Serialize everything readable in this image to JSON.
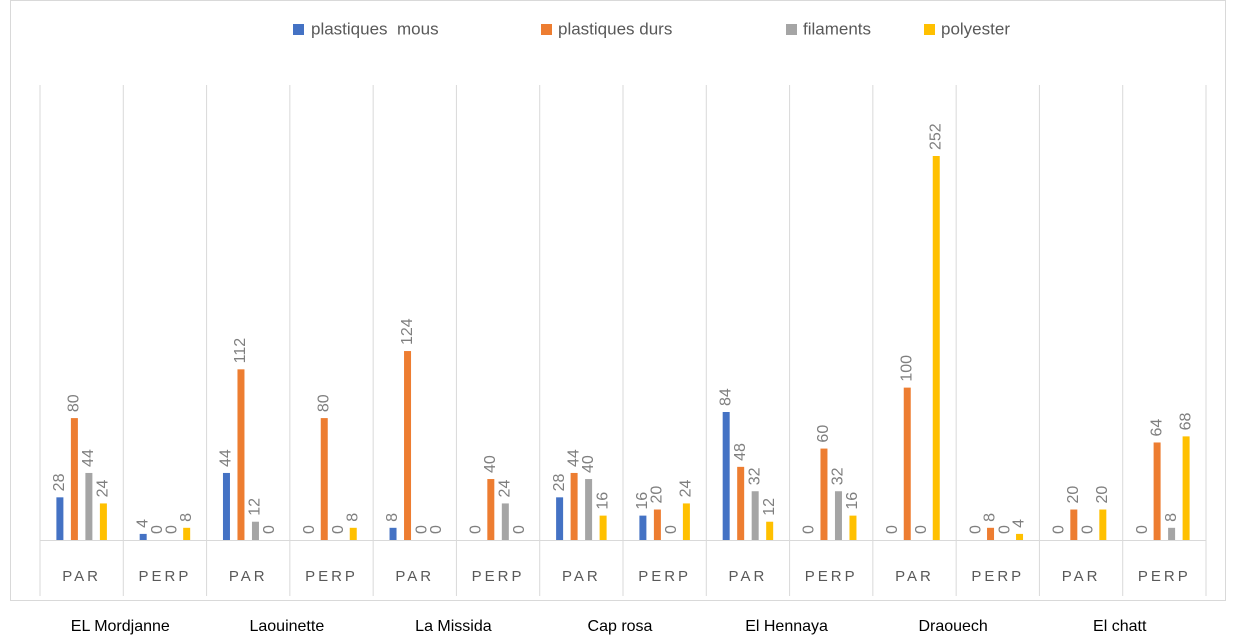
{
  "chart_data": {
    "type": "bar",
    "categories": [
      "PAR",
      "PERP",
      "PAR",
      "PERP",
      "PAR",
      "PERP",
      "PAR",
      "PERP",
      "PAR",
      "PERP",
      "PAR",
      "PERP",
      "PAR",
      "PERP"
    ],
    "groups": [
      "EL Mordjanne",
      "Laouinette",
      "La Missida",
      "Cap rosa",
      "El Hennaya",
      "Draouech",
      "El chatt"
    ],
    "series": [
      {
        "name": "plastiques  mous",
        "color": "#4472c4",
        "values": [
          28,
          4,
          44,
          0,
          8,
          0,
          28,
          16,
          84,
          0,
          0,
          0,
          0,
          0
        ]
      },
      {
        "name": "plastiques durs",
        "color": "#ed7d31",
        "values": [
          80,
          0,
          112,
          80,
          124,
          40,
          44,
          20,
          48,
          60,
          100,
          8,
          20,
          64
        ]
      },
      {
        "name": "filaments",
        "color": "#a5a5a5",
        "values": [
          44,
          0,
          12,
          0,
          0,
          24,
          40,
          0,
          32,
          32,
          0,
          0,
          0,
          8
        ]
      },
      {
        "name": "polyester",
        "color": "#ffc000",
        "values": [
          24,
          8,
          0,
          8,
          0,
          0,
          16,
          24,
          12,
          16,
          252,
          4,
          20,
          68
        ]
      }
    ],
    "legend": "top",
    "grid": true
  }
}
